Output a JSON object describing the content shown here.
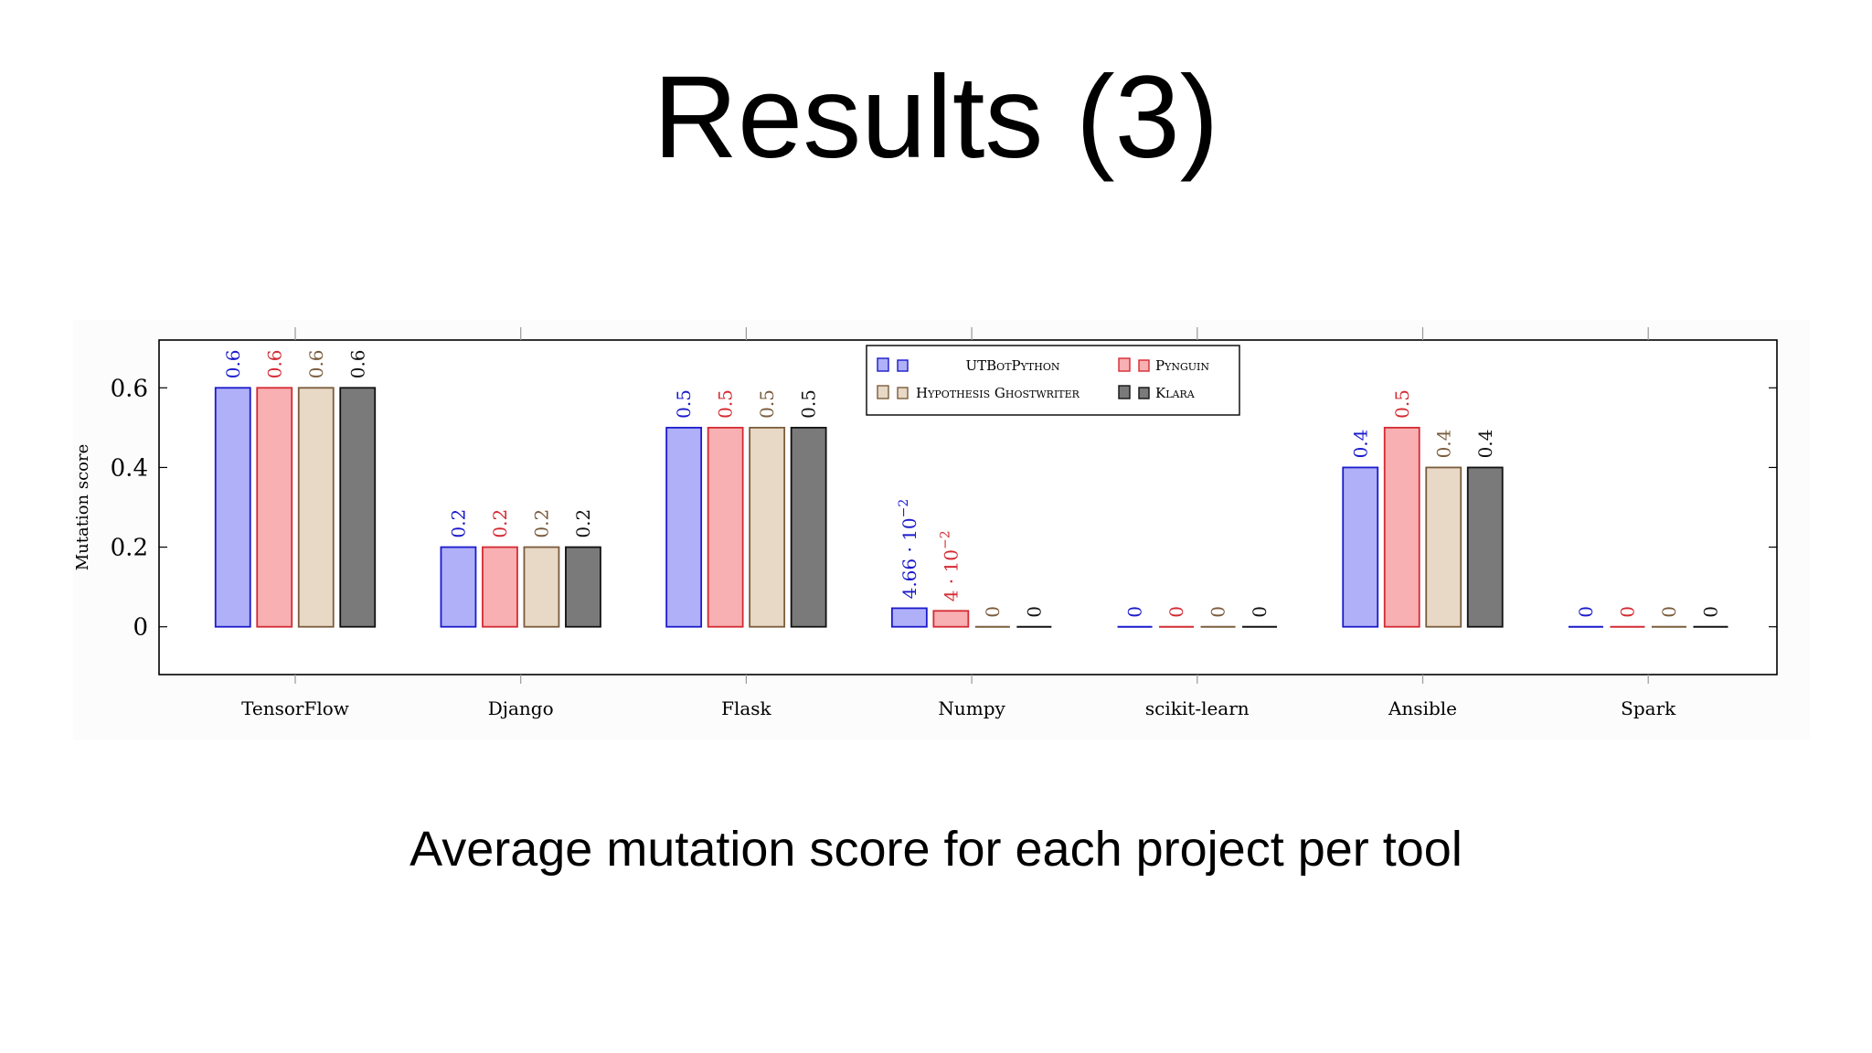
{
  "slide": {
    "title": "Results (3)",
    "caption": "Average mutation score for each project per tool"
  },
  "chart_data": {
    "type": "bar",
    "title": "",
    "xlabel": "",
    "ylabel": "Mutation score",
    "ylim": [
      -0.12,
      0.72
    ],
    "yticks": [
      0,
      0.2,
      0.4,
      0.6
    ],
    "ytick_labels": [
      "0",
      "0.2",
      "0.4",
      "0.6"
    ],
    "grid": false,
    "legend_position": "top-center",
    "categories": [
      "TensorFlow",
      "Django",
      "Flask",
      "Numpy",
      "scikit-learn",
      "Ansible",
      "Spark"
    ],
    "series": [
      {
        "name": "UTBotPython",
        "fill": "#b0b0f8",
        "stroke": "#1a1acc",
        "label_color": "#1a1acc",
        "values": [
          0.6,
          0.2,
          0.5,
          0.0466,
          0,
          0.4,
          0
        ],
        "labels": [
          "0.6",
          "0.2",
          "0.5",
          "4.66 · 10^-2",
          "0",
          "0.4",
          "0"
        ]
      },
      {
        "name": "Pynguin",
        "fill": "#f8b0b2",
        "stroke": "#d42a32",
        "label_color": "#d42a32",
        "values": [
          0.6,
          0.2,
          0.5,
          0.04,
          0,
          0.5,
          0
        ],
        "labels": [
          "0.6",
          "0.2",
          "0.5",
          "4 · 10^-2",
          "0",
          "0.5",
          "0"
        ]
      },
      {
        "name": "Hypothesis Ghostwriter",
        "fill": "#e8d8c6",
        "stroke": "#7a5c3c",
        "label_color": "#7a5c3c",
        "values": [
          0.6,
          0.2,
          0.5,
          0,
          0,
          0.4,
          0
        ],
        "labels": [
          "0.6",
          "0.2",
          "0.5",
          "0",
          "0",
          "0.4",
          "0"
        ]
      },
      {
        "name": "Klara",
        "fill": "#7a7a7a",
        "stroke": "#111111",
        "label_color": "#111111",
        "values": [
          0.6,
          0.2,
          0.5,
          0,
          0,
          0.4,
          0
        ],
        "labels": [
          "0.6",
          "0.2",
          "0.5",
          "0",
          "0",
          "0.4",
          "0"
        ]
      }
    ]
  }
}
